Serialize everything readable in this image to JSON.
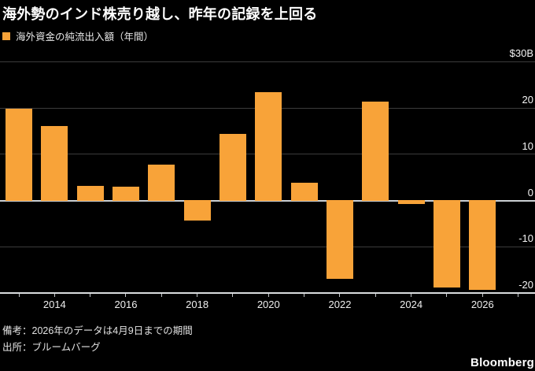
{
  "title": "海外勢のインド株売り越し、昨年の記録を上回る",
  "legend": {
    "label": "海外資金の純流出入額（年間）",
    "swatch_color": "#F8A339"
  },
  "chart_data": {
    "type": "bar",
    "title": "海外勢のインド株売り越し、昨年の記録を上回る",
    "series_name": "海外資金の純流出入額（年間）",
    "unit": "$B",
    "categories": [
      "2013",
      "2014",
      "2015",
      "2016",
      "2017",
      "2018",
      "2019",
      "2020",
      "2021",
      "2022",
      "2023",
      "2024",
      "2025",
      "2026"
    ],
    "values": [
      19.8,
      16.1,
      3.2,
      2.9,
      7.8,
      -4.4,
      14.4,
      23.4,
      3.8,
      -17.0,
      21.4,
      -0.8,
      -18.9,
      -19.3
    ],
    "ylim": [
      -20,
      30
    ],
    "y_ticks": [
      30,
      20,
      10,
      0,
      -10,
      -20
    ],
    "y_tick_labels": [
      "$30B",
      "20",
      "10",
      "0",
      "-10",
      "-20"
    ],
    "x_tick_labels": [
      "2014",
      "2016",
      "2018",
      "2020",
      "2022",
      "2024",
      "2026"
    ],
    "grid": "horizontal",
    "legend_position": "top-left",
    "bar_color": "#F8A339",
    "background_color": "#000000"
  },
  "footer": {
    "note": "備考：2026年のデータは4月9日までの期間",
    "source": "出所：ブルームバーグ",
    "logo": "Bloomberg"
  }
}
